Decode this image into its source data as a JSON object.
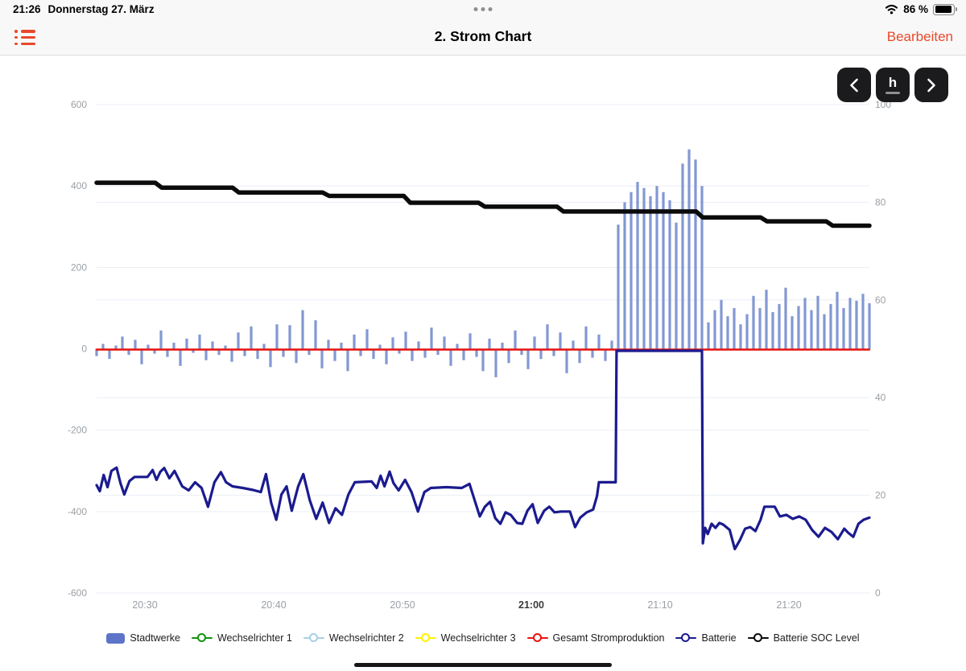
{
  "status_bar": {
    "time": "21:26",
    "date": "Donnerstag 27. März",
    "battery_percent": "86 %"
  },
  "nav_bar": {
    "title": "2. Strom Chart",
    "edit_button": "Bearbeiten"
  },
  "toolbar": {
    "prev_button": "chevron-left",
    "interval_button": "h",
    "next_button": "chevron-right"
  },
  "colors": {
    "accent": "#e8492b",
    "grid": "#e9eef6",
    "axis_label": "#9aa0a6",
    "axis_label_bold": "#3a3a3c",
    "bar_fill": "#8398d3",
    "battery_line": "#1b1b8f",
    "production_line": "#e8140e",
    "soc_line": "#0b0b0b",
    "button_bg": "#1b1b1d"
  },
  "chart_data": {
    "type": "mixed",
    "x_unit": "minutes_after_20:00",
    "x_range": [
      26.25,
      86.25
    ],
    "x_ticks": [
      {
        "t": 30,
        "label": "20:30",
        "bold": false
      },
      {
        "t": 40,
        "label": "20:40",
        "bold": false
      },
      {
        "t": 50,
        "label": "20:50",
        "bold": false
      },
      {
        "t": 60,
        "label": "21:00",
        "bold": true
      },
      {
        "t": 70,
        "label": "21:10",
        "bold": false
      },
      {
        "t": 80,
        "label": "21:20",
        "bold": false
      }
    ],
    "y_left": {
      "range": [
        -600,
        600
      ],
      "ticks": [
        600,
        400,
        200,
        0,
        -200,
        -400,
        -600
      ]
    },
    "y_right": {
      "range": [
        0,
        100
      ],
      "ticks": [
        100,
        80,
        60,
        40,
        20,
        0
      ]
    },
    "series": {
      "stadtwerke": {
        "type": "bar",
        "axis": "left",
        "t_start": 26.25,
        "t_step": 0.5,
        "values": [
          -18,
          12,
          -25,
          8,
          30,
          -15,
          22,
          -38,
          10,
          -12,
          45,
          -20,
          15,
          -42,
          25,
          -10,
          35,
          -28,
          18,
          -15,
          8,
          -32,
          40,
          -18,
          55,
          -25,
          12,
          -45,
          60,
          -20,
          58,
          -35,
          95,
          -15,
          70,
          -48,
          22,
          -30,
          15,
          -55,
          35,
          -18,
          48,
          -25,
          10,
          -38,
          28,
          -12,
          42,
          -30,
          18,
          -22,
          52,
          -15,
          30,
          -42,
          12,
          -28,
          38,
          -20,
          -55,
          25,
          -70,
          15,
          -35,
          45,
          -15,
          -50,
          30,
          -25,
          60,
          -18,
          40,
          -60,
          20,
          -35,
          55,
          -22,
          35,
          -30,
          20,
          305,
          360,
          385,
          410,
          395,
          375,
          400,
          385,
          365,
          310,
          455,
          490,
          465,
          400,
          65,
          95,
          120,
          80,
          100,
          60,
          85,
          130,
          100,
          145,
          90,
          110,
          150,
          80,
          105,
          125,
          95,
          130,
          85,
          110,
          140,
          100,
          125,
          118,
          135,
          112
        ]
      },
      "gesamt_stromproduktion": {
        "type": "line",
        "axis": "left",
        "points": [
          [
            26.25,
            -2
          ],
          [
            86.25,
            -2
          ]
        ]
      },
      "batterie": {
        "type": "line",
        "axis": "left",
        "points": [
          [
            26.25,
            -335
          ],
          [
            26.5,
            -350
          ],
          [
            26.8,
            -310
          ],
          [
            27.1,
            -340
          ],
          [
            27.4,
            -300
          ],
          [
            27.8,
            -292
          ],
          [
            28.1,
            -330
          ],
          [
            28.4,
            -358
          ],
          [
            28.8,
            -325
          ],
          [
            29.2,
            -315
          ],
          [
            30.2,
            -315
          ],
          [
            30.6,
            -298
          ],
          [
            30.9,
            -322
          ],
          [
            31.2,
            -302
          ],
          [
            31.5,
            -293
          ],
          [
            31.9,
            -318
          ],
          [
            32.3,
            -300
          ],
          [
            32.9,
            -338
          ],
          [
            33.4,
            -348
          ],
          [
            33.9,
            -328
          ],
          [
            34.4,
            -342
          ],
          [
            34.9,
            -388
          ],
          [
            35.4,
            -328
          ],
          [
            35.9,
            -303
          ],
          [
            36.3,
            -328
          ],
          [
            36.8,
            -338
          ],
          [
            37.6,
            -342
          ],
          [
            38.4,
            -347
          ],
          [
            39.0,
            -352
          ],
          [
            39.4,
            -308
          ],
          [
            39.8,
            -378
          ],
          [
            40.2,
            -420
          ],
          [
            40.6,
            -358
          ],
          [
            41.0,
            -338
          ],
          [
            41.4,
            -398
          ],
          [
            41.9,
            -338
          ],
          [
            42.3,
            -308
          ],
          [
            42.8,
            -372
          ],
          [
            43.3,
            -418
          ],
          [
            43.8,
            -378
          ],
          [
            44.3,
            -428
          ],
          [
            44.8,
            -392
          ],
          [
            45.3,
            -408
          ],
          [
            45.8,
            -358
          ],
          [
            46.3,
            -328
          ],
          [
            47.6,
            -326
          ],
          [
            48.0,
            -342
          ],
          [
            48.3,
            -312
          ],
          [
            48.6,
            -338
          ],
          [
            49.0,
            -302
          ],
          [
            49.3,
            -330
          ],
          [
            49.7,
            -348
          ],
          [
            50.2,
            -322
          ],
          [
            50.7,
            -352
          ],
          [
            51.2,
            -400
          ],
          [
            51.7,
            -352
          ],
          [
            52.2,
            -342
          ],
          [
            53.4,
            -340
          ],
          [
            54.6,
            -342
          ],
          [
            55.2,
            -332
          ],
          [
            55.6,
            -372
          ],
          [
            56.0,
            -412
          ],
          [
            56.4,
            -388
          ],
          [
            56.8,
            -376
          ],
          [
            57.2,
            -416
          ],
          [
            57.6,
            -430
          ],
          [
            58.0,
            -402
          ],
          [
            58.4,
            -408
          ],
          [
            58.9,
            -428
          ],
          [
            59.3,
            -430
          ],
          [
            59.7,
            -398
          ],
          [
            60.1,
            -382
          ],
          [
            60.5,
            -428
          ],
          [
            61.0,
            -398
          ],
          [
            61.4,
            -388
          ],
          [
            61.8,
            -402
          ],
          [
            62.3,
            -400
          ],
          [
            63.0,
            -400
          ],
          [
            63.4,
            -438
          ],
          [
            63.8,
            -415
          ],
          [
            64.3,
            -402
          ],
          [
            64.8,
            -395
          ],
          [
            65.1,
            -362
          ],
          [
            65.25,
            -328
          ],
          [
            66.55,
            -328
          ],
          [
            66.62,
            -5
          ],
          [
            73.25,
            -5
          ],
          [
            73.32,
            -478
          ],
          [
            73.5,
            -440
          ],
          [
            73.7,
            -455
          ],
          [
            74.0,
            -430
          ],
          [
            74.3,
            -440
          ],
          [
            74.6,
            -428
          ],
          [
            74.9,
            -432
          ],
          [
            75.4,
            -445
          ],
          [
            75.8,
            -492
          ],
          [
            76.2,
            -470
          ],
          [
            76.6,
            -442
          ],
          [
            77.0,
            -438
          ],
          [
            77.4,
            -448
          ],
          [
            77.8,
            -420
          ],
          [
            78.1,
            -388
          ],
          [
            78.9,
            -388
          ],
          [
            79.3,
            -412
          ],
          [
            79.8,
            -408
          ],
          [
            80.3,
            -418
          ],
          [
            80.8,
            -412
          ],
          [
            81.3,
            -420
          ],
          [
            81.8,
            -445
          ],
          [
            82.3,
            -462
          ],
          [
            82.8,
            -440
          ],
          [
            83.3,
            -450
          ],
          [
            83.8,
            -468
          ],
          [
            84.3,
            -442
          ],
          [
            84.6,
            -452
          ],
          [
            85.0,
            -462
          ],
          [
            85.4,
            -430
          ],
          [
            85.8,
            -420
          ],
          [
            86.25,
            -415
          ]
        ]
      },
      "batterie_soc_level": {
        "type": "line",
        "axis": "right",
        "points": [
          [
            26.25,
            84
          ],
          [
            30.8,
            84
          ],
          [
            31.3,
            83
          ],
          [
            36.8,
            83
          ],
          [
            37.3,
            82
          ],
          [
            43.8,
            82
          ],
          [
            44.3,
            81.3
          ],
          [
            50.1,
            81.3
          ],
          [
            50.6,
            79.9
          ],
          [
            55.9,
            79.9
          ],
          [
            56.4,
            79.1
          ],
          [
            62.0,
            79.1
          ],
          [
            62.5,
            78.1
          ],
          [
            72.8,
            78.1
          ],
          [
            73.3,
            76.9
          ],
          [
            77.8,
            76.9
          ],
          [
            78.3,
            76.1
          ],
          [
            82.9,
            76.1
          ],
          [
            83.4,
            75.2
          ],
          [
            86.25,
            75.2
          ]
        ]
      }
    },
    "legend": [
      {
        "label": "Stadtwerke",
        "marker": "bar",
        "color": "#5d74c8"
      },
      {
        "label": "Wechselrichter 1",
        "marker": "line",
        "color": "#129412"
      },
      {
        "label": "Wechselrichter 2",
        "marker": "line",
        "color": "#a9cfe5"
      },
      {
        "label": "Wechselrichter 3",
        "marker": "line",
        "color": "#fff200"
      },
      {
        "label": "Gesamt Stromproduktion",
        "marker": "line",
        "color": "#e8140e"
      },
      {
        "label": "Batterie",
        "marker": "line",
        "color": "#1b1b8f"
      },
      {
        "label": "Batterie SOC Level",
        "marker": "line",
        "color": "#0b0b0b"
      }
    ]
  }
}
